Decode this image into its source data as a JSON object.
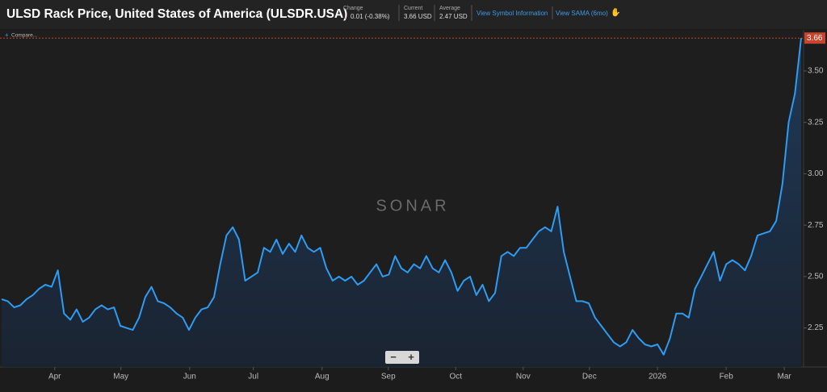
{
  "header": {
    "title": "ULSD Rack Price, United States of America (ULSDR.USA)",
    "change_label": "Change",
    "change_value": "0.01 (-0.38%)",
    "current_label": "Current",
    "current_value": "3.66 USD",
    "average_label": "Average",
    "average_value": "2.47 USD",
    "links": [
      "View Symbol Information",
      "View SAMA (6mo)"
    ],
    "compare": "Compare..."
  },
  "watermark": "SONAR",
  "chart_data": {
    "type": "area",
    "color": "#2e9cf2",
    "values": [
      2.39,
      2.38,
      2.35,
      2.36,
      2.39,
      2.41,
      2.44,
      2.46,
      2.45,
      2.53,
      2.32,
      2.29,
      2.34,
      2.28,
      2.3,
      2.34,
      2.36,
      2.34,
      2.35,
      2.26,
      2.25,
      2.24,
      2.3,
      2.4,
      2.45,
      2.38,
      2.37,
      2.35,
      2.32,
      2.3,
      2.24,
      2.3,
      2.34,
      2.35,
      2.4,
      2.56,
      2.7,
      2.74,
      2.68,
      2.48,
      2.5,
      2.52,
      2.64,
      2.62,
      2.68,
      2.61,
      2.66,
      2.62,
      2.7,
      2.64,
      2.62,
      2.64,
      2.54,
      2.48,
      2.5,
      2.48,
      2.5,
      2.46,
      2.48,
      2.52,
      2.56,
      2.5,
      2.51,
      2.6,
      2.54,
      2.52,
      2.56,
      2.54,
      2.6,
      2.54,
      2.52,
      2.58,
      2.52,
      2.43,
      2.48,
      2.5,
      2.41,
      2.46,
      2.38,
      2.42,
      2.6,
      2.62,
      2.6,
      2.64,
      2.64,
      2.68,
      2.72,
      2.74,
      2.72,
      2.84,
      2.62,
      2.5,
      2.38,
      2.38,
      2.37,
      2.3,
      2.26,
      2.22,
      2.18,
      2.16,
      2.18,
      2.24,
      2.2,
      2.17,
      2.16,
      2.17,
      2.12,
      2.2,
      2.32,
      2.32,
      2.3,
      2.44,
      2.5,
      2.56,
      2.62,
      2.48,
      2.56,
      2.58,
      2.56,
      2.53,
      2.6,
      2.7,
      2.71,
      2.72,
      2.77,
      2.95,
      3.25,
      3.39,
      3.66
    ],
    "xlim": [
      0,
      128
    ],
    "xticks": [
      {
        "value": 8.5,
        "label": "Apr"
      },
      {
        "value": 19.1,
        "label": "May"
      },
      {
        "value": 30.1,
        "label": "Jun"
      },
      {
        "value": 40.3,
        "label": "Jul"
      },
      {
        "value": 51.3,
        "label": "Aug"
      },
      {
        "value": 61.9,
        "label": "Sep"
      },
      {
        "value": 72.7,
        "label": "Oct"
      },
      {
        "value": 83.5,
        "label": "Nov"
      },
      {
        "value": 94.1,
        "label": "Dec"
      },
      {
        "value": 105,
        "label": "2026"
      },
      {
        "value": 116,
        "label": "Feb"
      },
      {
        "value": 125.3,
        "label": "Mar"
      }
    ],
    "ylim": [
      2.06,
      3.7
    ],
    "yticks": [
      2.25,
      {
        "value": 2.5,
        "label": "2.50"
      },
      2.75,
      {
        "value": 3,
        "label": "3.00"
      },
      3.25,
      {
        "value": 3.5,
        "label": "3.50"
      }
    ]
  }
}
